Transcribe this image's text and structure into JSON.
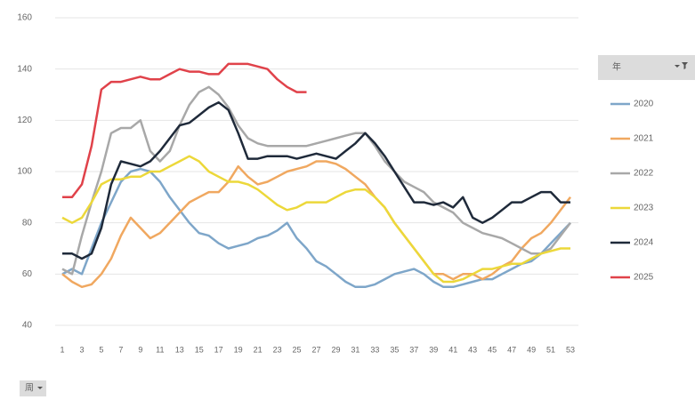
{
  "chart_data": {
    "type": "line",
    "categories": [
      "1",
      null,
      "3",
      null,
      "5",
      null,
      "7",
      null,
      "9",
      null,
      "11",
      null,
      "13",
      null,
      "15",
      null,
      "17",
      null,
      "19",
      null,
      "21",
      null,
      "23",
      null,
      "25",
      null,
      "27",
      null,
      "29",
      null,
      "31",
      null,
      "33",
      null,
      "35",
      null,
      "37",
      null,
      "39",
      null,
      "41",
      null,
      "43",
      null,
      "45",
      null,
      "47",
      null,
      "49",
      null,
      "51",
      null,
      "53"
    ],
    "ylim": [
      40,
      160
    ],
    "yticks": [
      40,
      60,
      80,
      100,
      120,
      140,
      160
    ],
    "grid": true,
    "legend_title": "年",
    "field_button": "周",
    "legend": "right",
    "series": [
      {
        "name": "2020",
        "color": "#7ea6c9",
        "values": [
          60,
          62,
          60,
          70,
          80,
          88,
          96,
          100,
          101,
          100,
          96,
          90,
          85,
          80,
          76,
          75,
          72,
          70,
          71,
          72,
          74,
          75,
          77,
          80,
          74,
          70,
          65,
          63,
          60,
          57,
          55,
          55,
          56,
          58,
          60,
          61,
          62,
          60,
          57,
          55,
          55,
          56,
          57,
          58,
          58,
          60,
          62,
          64,
          65,
          68,
          72,
          76,
          80
        ]
      },
      {
        "name": "2021",
        "color": "#f0a860",
        "values": [
          60,
          57,
          55,
          56,
          60,
          66,
          75,
          82,
          78,
          74,
          76,
          80,
          84,
          88,
          90,
          92,
          92,
          96,
          102,
          98,
          95,
          96,
          98,
          100,
          101,
          102,
          104,
          104,
          103,
          101,
          98,
          95,
          90,
          86,
          80,
          75,
          70,
          65,
          60,
          60,
          58,
          60,
          60,
          58,
          60,
          63,
          65,
          70,
          74,
          76,
          80,
          85,
          90
        ]
      },
      {
        "name": "2022",
        "color": "#a8a8a8",
        "values": [
          62,
          60,
          75,
          88,
          100,
          115,
          117,
          117,
          120,
          108,
          104,
          108,
          118,
          126,
          131,
          133,
          130,
          125,
          118,
          113,
          111,
          110,
          110,
          110,
          110,
          110,
          111,
          112,
          113,
          114,
          115,
          115,
          110,
          104,
          100,
          96,
          94,
          92,
          88,
          86,
          84,
          80,
          78,
          76,
          75,
          74,
          72,
          70,
          68,
          68,
          70,
          75,
          80
        ]
      },
      {
        "name": "2023",
        "color": "#ecd83a",
        "values": [
          82,
          80,
          82,
          88,
          95,
          97,
          97,
          98,
          98,
          100,
          100,
          102,
          104,
          106,
          104,
          100,
          98,
          96,
          96,
          95,
          93,
          90,
          87,
          85,
          86,
          88,
          88,
          88,
          90,
          92,
          93,
          93,
          90,
          86,
          80,
          75,
          70,
          65,
          60,
          57,
          57,
          58,
          60,
          62,
          62,
          63,
          64,
          64,
          66,
          68,
          69,
          70,
          70
        ]
      },
      {
        "name": "2024",
        "color": "#1f2a3a",
        "values": [
          68,
          68,
          66,
          68,
          78,
          95,
          104,
          103,
          102,
          104,
          108,
          113,
          118,
          119,
          122,
          125,
          127,
          124,
          115,
          105,
          105,
          106,
          106,
          106,
          105,
          106,
          107,
          106,
          105,
          108,
          111,
          115,
          111,
          106,
          100,
          94,
          88,
          88,
          87,
          88,
          86,
          90,
          82,
          80,
          82,
          85,
          88,
          88,
          90,
          92,
          92,
          88,
          88
        ]
      },
      {
        "name": "2025",
        "color": "#e0424a",
        "values": [
          90,
          90,
          95,
          110,
          132,
          135,
          135,
          136,
          137,
          136,
          136,
          138,
          140,
          139,
          139,
          138,
          138,
          142,
          142,
          142,
          141,
          140,
          136,
          133,
          131,
          131,
          null,
          null,
          null,
          null,
          null,
          null,
          null,
          null,
          null,
          null,
          null,
          null,
          null,
          null,
          null,
          null,
          null,
          null,
          null,
          null,
          null,
          null,
          null,
          null,
          null,
          null,
          null
        ]
      }
    ]
  }
}
